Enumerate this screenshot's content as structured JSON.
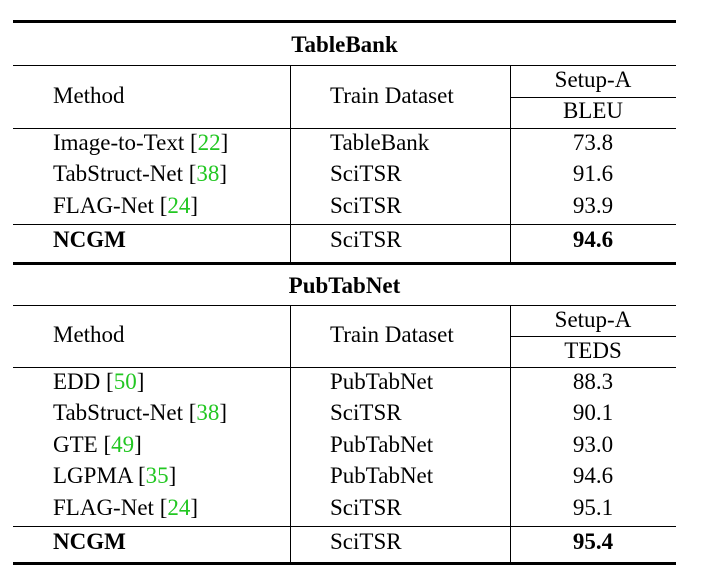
{
  "sections": [
    {
      "title": "TableBank",
      "header": {
        "method": "Method",
        "dataset": "Train Dataset",
        "setup": "Setup-A",
        "metric": "BLEU"
      },
      "rows": [
        {
          "method": "Image-to-Text",
          "cite": "22",
          "dataset": "TableBank",
          "score": "73.8",
          "bold": false
        },
        {
          "method": "TabStruct-Net",
          "cite": "38",
          "dataset": "SciTSR",
          "score": "91.6",
          "bold": false
        },
        {
          "method": "FLAG-Net",
          "cite": "24",
          "dataset": "SciTSR",
          "score": "93.9",
          "bold": false
        },
        {
          "method": "NCGM",
          "cite": "",
          "dataset": "SciTSR",
          "score": "94.6",
          "bold": true
        }
      ]
    },
    {
      "title": "PubTabNet",
      "header": {
        "method": "Method",
        "dataset": "Train Dataset",
        "setup": "Setup-A",
        "metric": "TEDS"
      },
      "rows": [
        {
          "method": "EDD",
          "cite": "50",
          "dataset": "PubTabNet",
          "score": "88.3",
          "bold": false
        },
        {
          "method": "TabStruct-Net",
          "cite": "38",
          "dataset": "SciTSR",
          "score": "90.1",
          "bold": false
        },
        {
          "method": "GTE",
          "cite": "49",
          "dataset": "PubTabNet",
          "score": "93.0",
          "bold": false
        },
        {
          "method": "LGPMA",
          "cite": "35",
          "dataset": "PubTabNet",
          "score": "94.6",
          "bold": false
        },
        {
          "method": "FLAG-Net",
          "cite": "24",
          "dataset": "SciTSR",
          "score": "95.1",
          "bold": false
        },
        {
          "method": "NCGM",
          "cite": "",
          "dataset": "SciTSR",
          "score": "95.4",
          "bold": true
        }
      ]
    }
  ],
  "colors": {
    "citation": "#22c722",
    "rule": "#000000"
  }
}
